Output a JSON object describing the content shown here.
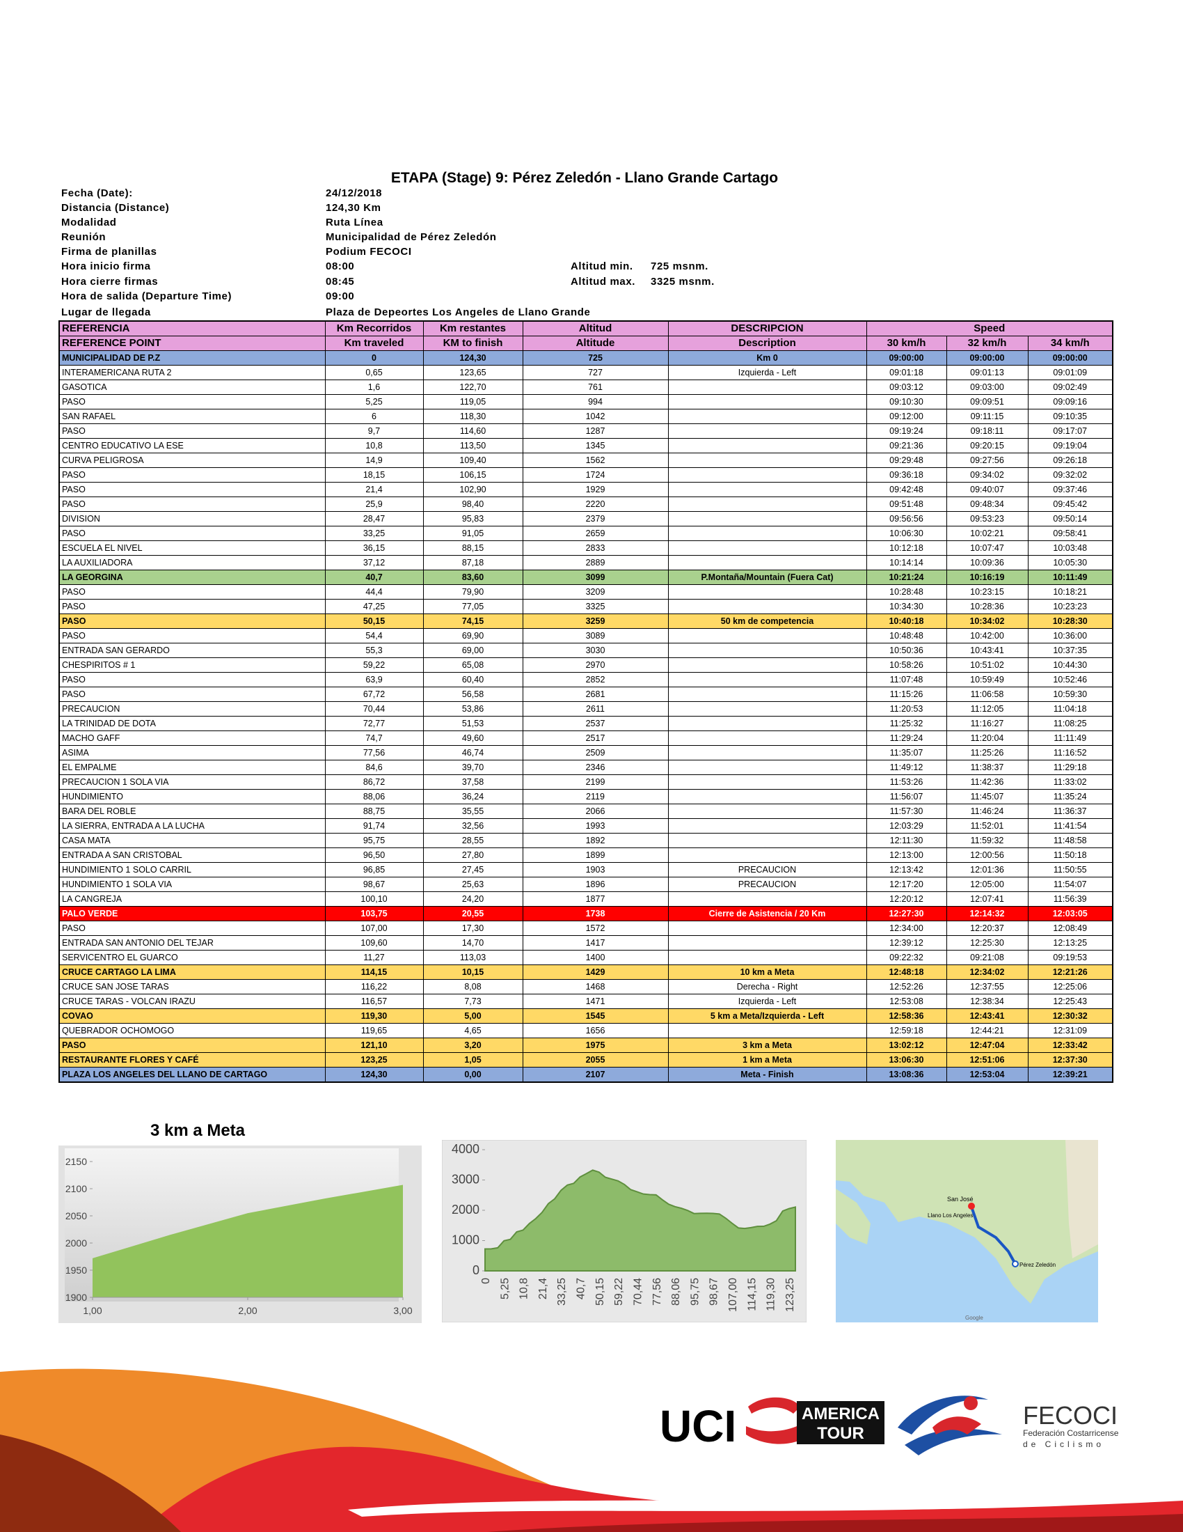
{
  "info": {
    "title": "ETAPA (Stage) 9: Pérez Zeledón - Llano Grande Cartago",
    "items": [
      {
        "label": "Fecha (Date):",
        "value": "24/12/2018"
      },
      {
        "label": "Distancia (Distance)",
        "value": "124,30 Km"
      },
      {
        "label": "Modalidad",
        "value": "Ruta Línea"
      },
      {
        "label": "Reunión",
        "value": "Municipalidad de Pérez Zeledón"
      },
      {
        "label": "Firma de planillas",
        "value": "Podium FECOCI"
      },
      {
        "label": "Hora inicio firma",
        "value": "08:00"
      },
      {
        "label": "Hora cierre firmas",
        "value": "08:45"
      },
      {
        "label": "Hora de salida (Departure Time)",
        "value": "09:00"
      },
      {
        "label": "Lugar de llegada",
        "value": "Plaza de Depeortes Los Angeles de Llano Grande"
      }
    ],
    "altitude": [
      {
        "label": "Altitud min.",
        "value": "725  msnm."
      },
      {
        "label": "Altitud max.",
        "value": "3325  msnm."
      }
    ]
  },
  "table": {
    "header": [
      [
        "REFERENCIA",
        "Km Recorridos",
        "Km restantes",
        "Altitud",
        "DESCRIPCION",
        "Speed"
      ],
      [
        "REFERENCE POINT",
        "Km traveled",
        "KM to finish",
        "Altitude",
        "Description",
        "30 km/h",
        "32 km/h",
        "34 km/h"
      ]
    ],
    "header_color": "#e6a1dc",
    "rows": [
      {
        "cells": [
          "MUNICIPALIDAD DE P.Z",
          "0",
          "124,30",
          "725",
          "Km 0",
          "09:00:00",
          "09:00:00",
          "09:00:00"
        ],
        "highlight": "#8eaadb"
      },
      {
        "cells": [
          "INTERAMERICANA RUTA 2",
          "0,65",
          "123,65",
          "727",
          "Izquierda - Left",
          "09:01:18",
          "09:01:13",
          "09:01:09"
        ]
      },
      {
        "cells": [
          "GASOTICA",
          "1,6",
          "122,70",
          "761",
          null,
          "09:03:12",
          "09:03:00",
          "09:02:49"
        ]
      },
      {
        "cells": [
          "PASO",
          "5,25",
          "119,05",
          "994",
          null,
          "09:10:30",
          "09:09:51",
          "09:09:16"
        ]
      },
      {
        "cells": [
          "SAN RAFAEL",
          "6",
          "118,30",
          "1042",
          null,
          "09:12:00",
          "09:11:15",
          "09:10:35"
        ]
      },
      {
        "cells": [
          "PASO",
          "9,7",
          "114,60",
          "1287",
          null,
          "09:19:24",
          "09:18:11",
          "09:17:07"
        ]
      },
      {
        "cells": [
          "CENTRO EDUCATIVO LA ESE",
          "10,8",
          "113,50",
          "1345",
          null,
          "09:21:36",
          "09:20:15",
          "09:19:04"
        ]
      },
      {
        "cells": [
          "CURVA PELIGROSA",
          "14,9",
          "109,40",
          "1562",
          null,
          "09:29:48",
          "09:27:56",
          "09:26:18"
        ]
      },
      {
        "cells": [
          "PASO",
          "18,15",
          "106,15",
          "1724",
          null,
          "09:36:18",
          "09:34:02",
          "09:32:02"
        ]
      },
      {
        "cells": [
          "PASO",
          "21,4",
          "102,90",
          "1929",
          null,
          "09:42:48",
          "09:40:07",
          "09:37:46"
        ]
      },
      {
        "cells": [
          "PASO",
          "25,9",
          "98,40",
          "2220",
          null,
          "09:51:48",
          "09:48:34",
          "09:45:42"
        ]
      },
      {
        "cells": [
          "DIVISION",
          "28,47",
          "95,83",
          "2379",
          null,
          "09:56:56",
          "09:53:23",
          "09:50:14"
        ]
      },
      {
        "cells": [
          "PASO",
          "33,25",
          "91,05",
          "2659",
          null,
          "10:06:30",
          "10:02:21",
          "09:58:41"
        ]
      },
      {
        "cells": [
          "ESCUELA EL NIVEL",
          "36,15",
          "88,15",
          "2833",
          null,
          "10:12:18",
          "10:07:47",
          "10:03:48"
        ]
      },
      {
        "cells": [
          "LA AUXILIADORA",
          "37,12",
          "87,18",
          "2889",
          null,
          "10:14:14",
          "10:09:36",
          "10:05:30"
        ]
      },
      {
        "cells": [
          "LA GEORGINA",
          "40,7",
          "83,60",
          "3099",
          "P.Montaña/Mountain (Fuera Cat)",
          "10:21:24",
          "10:16:19",
          "10:11:49"
        ],
        "highlight": "#a9d18e"
      },
      {
        "cells": [
          "PASO",
          "44,4",
          "79,90",
          "3209",
          null,
          "10:28:48",
          "10:23:15",
          "10:18:21"
        ]
      },
      {
        "cells": [
          "PASO",
          "47,25",
          "77,05",
          "3325",
          null,
          "10:34:30",
          "10:28:36",
          "10:23:23"
        ]
      },
      {
        "cells": [
          "PASO",
          "50,15",
          "74,15",
          "3259",
          "50 km de competencia",
          "10:40:18",
          "10:34:02",
          "10:28:30"
        ],
        "highlight": "#ffd966"
      },
      {
        "cells": [
          "PASO",
          "54,4",
          "69,90",
          "3089",
          null,
          "10:48:48",
          "10:42:00",
          "10:36:00"
        ]
      },
      {
        "cells": [
          "ENTRADA SAN GERARDO",
          "55,3",
          "69,00",
          "3030",
          null,
          "10:50:36",
          "10:43:41",
          "10:37:35"
        ]
      },
      {
        "cells": [
          "CHESPIRITOS # 1",
          "59,22",
          "65,08",
          "2970",
          null,
          "10:58:26",
          "10:51:02",
          "10:44:30"
        ]
      },
      {
        "cells": [
          "PASO",
          "63,9",
          "60,40",
          "2852",
          null,
          "11:07:48",
          "10:59:49",
          "10:52:46"
        ]
      },
      {
        "cells": [
          "PASO",
          "67,72",
          "56,58",
          "2681",
          null,
          "11:15:26",
          "11:06:58",
          "10:59:30"
        ]
      },
      {
        "cells": [
          "PRECAUCION",
          "70,44",
          "53,86",
          "2611",
          null,
          "11:20:53",
          "11:12:05",
          "11:04:18"
        ]
      },
      {
        "cells": [
          "LA TRINIDAD DE DOTA",
          "72,77",
          "51,53",
          "2537",
          null,
          "11:25:32",
          "11:16:27",
          "11:08:25"
        ]
      },
      {
        "cells": [
          "MACHO GAFF",
          "74,7",
          "49,60",
          "2517",
          null,
          "11:29:24",
          "11:20:04",
          "11:11:49"
        ]
      },
      {
        "cells": [
          "ASIMA",
          "77,56",
          "46,74",
          "2509",
          null,
          "11:35:07",
          "11:25:26",
          "11:16:52"
        ]
      },
      {
        "cells": [
          "EL EMPALME",
          "84,6",
          "39,70",
          "2346",
          null,
          "11:49:12",
          "11:38:37",
          "11:29:18"
        ]
      },
      {
        "cells": [
          "PRECAUCION 1 SOLA VIA",
          "86,72",
          "37,58",
          "2199",
          null,
          "11:53:26",
          "11:42:36",
          "11:33:02"
        ]
      },
      {
        "cells": [
          "HUNDIMIENTO",
          "88,06",
          "36,24",
          "2119",
          null,
          "11:56:07",
          "11:45:07",
          "11:35:24"
        ]
      },
      {
        "cells": [
          "BARA DEL ROBLE",
          "88,75",
          "35,55",
          "2066",
          null,
          "11:57:30",
          "11:46:24",
          "11:36:37"
        ]
      },
      {
        "cells": [
          "LA SIERRA, ENTRADA A LA LUCHA",
          "91,74",
          "32,56",
          "1993",
          null,
          "12:03:29",
          "11:52:01",
          "11:41:54"
        ]
      },
      {
        "cells": [
          "CASA MATA",
          "95,75",
          "28,55",
          "1892",
          null,
          "12:11:30",
          "11:59:32",
          "11:48:58"
        ]
      },
      {
        "cells": [
          "ENTRADA A SAN CRISTOBAL",
          "96,50",
          "27,80",
          "1899",
          null,
          "12:13:00",
          "12:00:56",
          "11:50:18"
        ]
      },
      {
        "cells": [
          "HUNDIMIENTO 1 SOLO CARRIL",
          "96,85",
          "27,45",
          "1903",
          "PRECAUCION",
          "12:13:42",
          "12:01:36",
          "11:50:55"
        ]
      },
      {
        "cells": [
          "HUNDIMIENTO 1 SOLA VIA",
          "98,67",
          "25,63",
          "1896",
          "PRECAUCION",
          "12:17:20",
          "12:05:00",
          "11:54:07"
        ]
      },
      {
        "cells": [
          "LA CANGREJA",
          "100,10",
          "24,20",
          "1877",
          null,
          "12:20:12",
          "12:07:41",
          "11:56:39"
        ]
      },
      {
        "cells": [
          "PALO VERDE",
          "103,75",
          "20,55",
          "1738",
          "Cierre de Asistencia / 20 Km",
          "12:27:30",
          "12:14:32",
          "12:03:05"
        ],
        "highlight": "#ff0000",
        "text_color": "#ffffff"
      },
      {
        "cells": [
          "PASO",
          "107,00",
          "17,30",
          "1572",
          null,
          "12:34:00",
          "12:20:37",
          "12:08:49"
        ]
      },
      {
        "cells": [
          "ENTRADA SAN ANTONIO DEL TEJAR",
          "109,60",
          "14,70",
          "1417",
          null,
          "12:39:12",
          "12:25:30",
          "12:13:25"
        ]
      },
      {
        "cells": [
          "SERVICENTRO EL GUARCO",
          "11,27",
          "113,03",
          "1400",
          null,
          "09:22:32",
          "09:21:08",
          "09:19:53"
        ]
      },
      {
        "cells": [
          "CRUCE CARTAGO LA LIMA",
          "114,15",
          "10,15",
          "1429",
          "10 km a Meta",
          "12:48:18",
          "12:34:02",
          "12:21:26"
        ],
        "highlight": "#ffd966"
      },
      {
        "cells": [
          "CRUCE SAN JOSE TARAS",
          "116,22",
          "8,08",
          "1468",
          "Derecha - Right",
          "12:52:26",
          "12:37:55",
          "12:25:06"
        ]
      },
      {
        "cells": [
          "CRUCE TARAS - VOLCAN IRAZU",
          "116,57",
          "7,73",
          "1471",
          "Izquierda - Left",
          "12:53:08",
          "12:38:34",
          "12:25:43"
        ]
      },
      {
        "cells": [
          "COVAO",
          "119,30",
          "5,00",
          "1545",
          "5 km a Meta/Izquierda - Left",
          "12:58:36",
          "12:43:41",
          "12:30:32"
        ],
        "highlight": "#ffd966"
      },
      {
        "cells": [
          "QUEBRADOR OCHOMOGO",
          "119,65",
          "4,65",
          "1656",
          null,
          "12:59:18",
          "12:44:21",
          "12:31:09"
        ]
      },
      {
        "cells": [
          "PASO",
          "121,10",
          "3,20",
          "1975",
          "3 km a Meta",
          "13:02:12",
          "12:47:04",
          "12:33:42"
        ],
        "highlight": "#ffd966"
      },
      {
        "cells": [
          "RESTAURANTE FLORES Y CAFÉ",
          "123,25",
          "1,05",
          "2055",
          "1 km a Meta",
          "13:06:30",
          "12:51:06",
          "12:37:30"
        ],
        "highlight": "#ffd966"
      },
      {
        "cells": [
          "PLAZA LOS ANGELES DEL LLANO DE CARTAGO",
          "124,30",
          "0,00",
          "2107",
          "Meta - Finish",
          "13:08:36",
          "12:53:04",
          "12:39:21"
        ],
        "highlight": "#8eaadb"
      }
    ]
  },
  "chart_data": [
    {
      "type": "area",
      "title": "3 km a Meta",
      "x": [
        1,
        1.5,
        2,
        2.5,
        3
      ],
      "values": [
        1972,
        2015,
        2055,
        2082,
        2107
      ],
      "color": "#92c35c",
      "xlim": [
        1,
        3
      ],
      "xticks": [
        {
          "value": 1,
          "label": "1,00"
        },
        {
          "value": 2,
          "label": "2,00"
        },
        {
          "value": 3,
          "label": "3,00"
        }
      ],
      "ylim": [
        1900,
        2150
      ],
      "yticks": [
        1900,
        1950,
        2000,
        2050,
        2100,
        2150
      ]
    },
    {
      "type": "area",
      "color": "#8dbb6a",
      "line_color": "#5f8f3e",
      "categories": [
        "0",
        null,
        null,
        "5,25",
        null,
        null,
        "10,8",
        null,
        null,
        "21,4",
        null,
        null,
        "33,25",
        null,
        null,
        "40,7",
        null,
        null,
        "50,15",
        null,
        null,
        "59,22",
        null,
        null,
        "70,44",
        null,
        null,
        "77,56",
        null,
        null,
        "88,06",
        null,
        null,
        "95,75",
        null,
        null,
        "98,67",
        null,
        null,
        "107,00",
        null,
        null,
        "114,15",
        null,
        null,
        "119,30",
        null,
        null,
        "123,25",
        null
      ],
      "values": [
        725,
        727,
        761,
        994,
        1042,
        1287,
        1345,
        1562,
        1724,
        1929,
        2220,
        2379,
        2659,
        2833,
        2889,
        3099,
        3209,
        3325,
        3259,
        3089,
        3030,
        2970,
        2852,
        2681,
        2611,
        2537,
        2517,
        2509,
        2346,
        2199,
        2119,
        2066,
        1993,
        1892,
        1899,
        1903,
        1896,
        1877,
        1738,
        1572,
        1417,
        1400,
        1429,
        1468,
        1471,
        1545,
        1656,
        1975,
        2055,
        2107
      ],
      "ylim": [
        0,
        4000
      ],
      "yticks": [
        0,
        1000,
        2000,
        3000,
        4000
      ]
    }
  ],
  "map": {
    "labels": [
      "San José",
      "Llano Los Angeles",
      "Pérez Zeledón"
    ],
    "credit": "Google"
  },
  "logos": {
    "uci": "UCI",
    "america": "AMERICA",
    "tour": "TOUR",
    "fecoci": "FECOCI",
    "fed1": "Federación Costarricense",
    "fed2": "de Ciclismo"
  }
}
